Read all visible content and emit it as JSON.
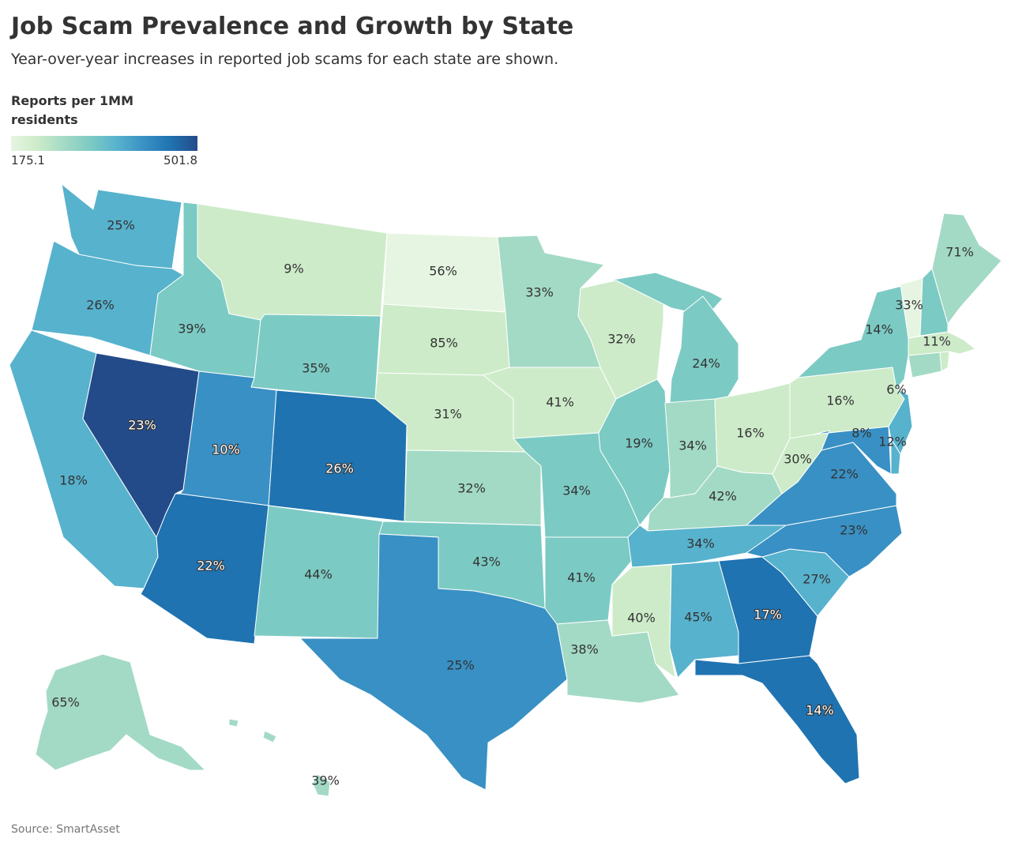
{
  "header": {
    "title": "Job Scam Prevalence and Growth by State",
    "subtitle": "Year-over-year increases in reported job scams for each state are shown."
  },
  "legend": {
    "title": "Reports per 1MM residents",
    "min_label": "175.1",
    "max_label": "501.8",
    "colors": [
      "#e6f5e1",
      "#cdebc9",
      "#a3dac5",
      "#7ccac4",
      "#57b2cd",
      "#3990c4",
      "#1f73b1",
      "#244b89"
    ]
  },
  "source": "Source: SmartAsset",
  "states": [
    {
      "id": "wa",
      "label": "25%",
      "level": 4
    },
    {
      "id": "or",
      "label": "26%",
      "level": 4
    },
    {
      "id": "ca",
      "label": "18%",
      "level": 4
    },
    {
      "id": "nv",
      "label": "23%",
      "level": 7
    },
    {
      "id": "id",
      "label": "39%",
      "level": 3
    },
    {
      "id": "mt",
      "label": "9%",
      "level": 1
    },
    {
      "id": "wy",
      "label": "35%",
      "level": 3
    },
    {
      "id": "ut",
      "label": "10%",
      "level": 5
    },
    {
      "id": "co",
      "label": "26%",
      "level": 6
    },
    {
      "id": "az",
      "label": "22%",
      "level": 6
    },
    {
      "id": "nm",
      "label": "44%",
      "level": 3
    },
    {
      "id": "nd",
      "label": "56%",
      "level": 0
    },
    {
      "id": "sd",
      "label": "85%",
      "level": 1
    },
    {
      "id": "ne",
      "label": "31%",
      "level": 1
    },
    {
      "id": "ks",
      "label": "32%",
      "level": 2
    },
    {
      "id": "ok",
      "label": "43%",
      "level": 3
    },
    {
      "id": "tx",
      "label": "25%",
      "level": 5
    },
    {
      "id": "mn",
      "label": "33%",
      "level": 2
    },
    {
      "id": "ia",
      "label": "41%",
      "level": 1
    },
    {
      "id": "mo",
      "label": "34%",
      "level": 3
    },
    {
      "id": "ar",
      "label": "41%",
      "level": 3
    },
    {
      "id": "la",
      "label": "38%",
      "level": 2
    },
    {
      "id": "wi",
      "label": "32%",
      "level": 1
    },
    {
      "id": "il",
      "label": "19%",
      "level": 3
    },
    {
      "id": "mi",
      "label": "24%",
      "level": 3
    },
    {
      "id": "in",
      "label": "34%",
      "level": 2
    },
    {
      "id": "oh",
      "label": "16%",
      "level": 1
    },
    {
      "id": "ky",
      "label": "42%",
      "level": 2
    },
    {
      "id": "tn",
      "label": "34%",
      "level": 4
    },
    {
      "id": "ms",
      "label": "40%",
      "level": 1
    },
    {
      "id": "al",
      "label": "45%",
      "level": 4
    },
    {
      "id": "ga",
      "label": "17%",
      "level": 6
    },
    {
      "id": "fl",
      "label": "14%",
      "level": 6
    },
    {
      "id": "sc",
      "label": "27%",
      "level": 4
    },
    {
      "id": "nc",
      "label": "23%",
      "level": 5
    },
    {
      "id": "va",
      "label": "22%",
      "level": 5
    },
    {
      "id": "wv",
      "label": "30%",
      "level": 1
    },
    {
      "id": "pa",
      "label": "16%",
      "level": 1
    },
    {
      "id": "ny",
      "label": "14%",
      "level": 3
    },
    {
      "id": "vt",
      "label": "33%",
      "level": 0
    },
    {
      "id": "nh",
      "label": "",
      "level": 3
    },
    {
      "id": "me",
      "label": "71%",
      "level": 2
    },
    {
      "id": "ma",
      "label": "11%",
      "level": 1
    },
    {
      "id": "ri",
      "label": "",
      "level": 1
    },
    {
      "id": "ct",
      "label": "",
      "level": 2
    },
    {
      "id": "nj",
      "label": "6%",
      "level": 4
    },
    {
      "id": "de",
      "label": "12%",
      "level": 4
    },
    {
      "id": "md",
      "label": "8%",
      "level": 5
    },
    {
      "id": "ak",
      "label": "65%",
      "level": 2
    },
    {
      "id": "hi",
      "label": "39%",
      "level": 2
    }
  ]
}
